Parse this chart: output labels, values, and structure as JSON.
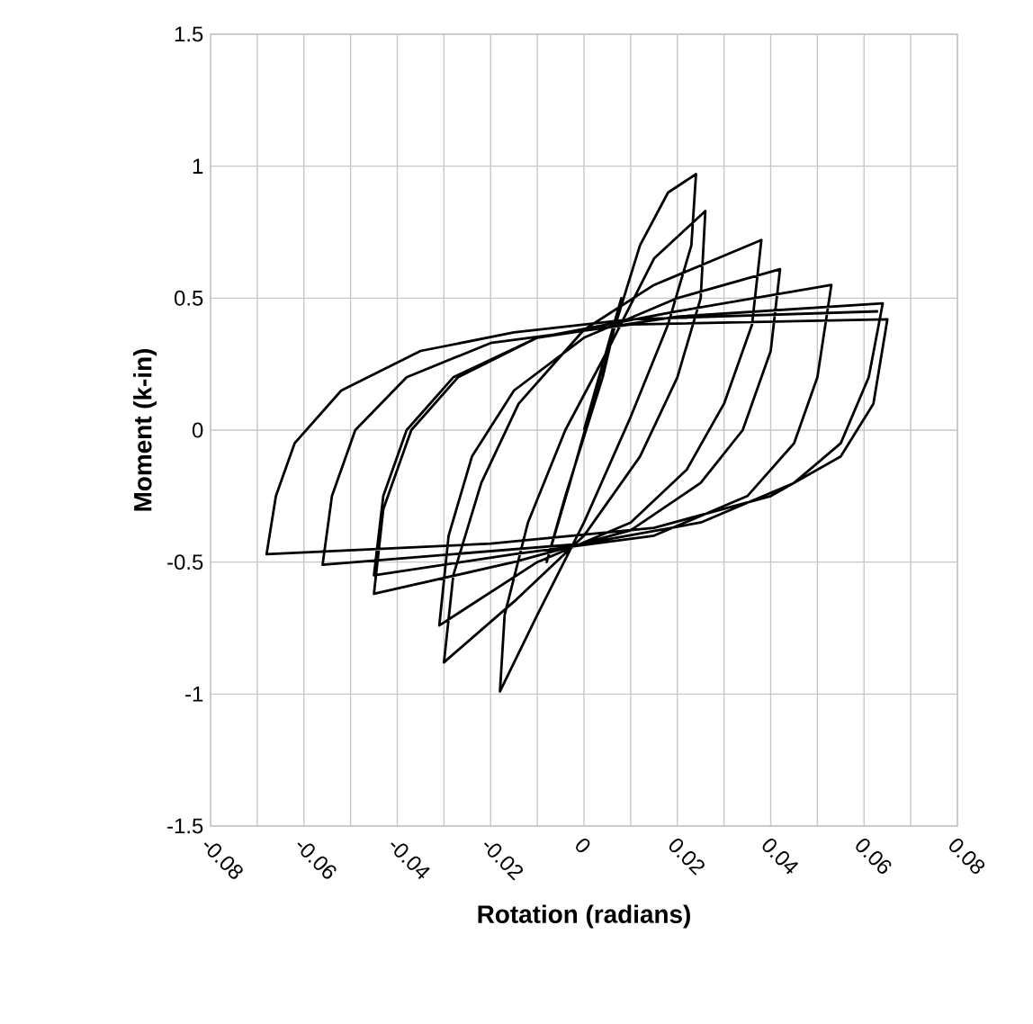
{
  "chart_data": {
    "type": "line",
    "xlabel": "Rotation (radians)",
    "ylabel": "Moment (k-in)",
    "xlim": [
      -0.08,
      0.08
    ],
    "ylim": [
      -1.5,
      1.5
    ],
    "xticks": [
      {
        "value": -0.08,
        "label": "-0.08"
      },
      {
        "value": -0.07,
        "label": null
      },
      {
        "value": -0.06,
        "label": "-0.06"
      },
      {
        "value": -0.05,
        "label": null
      },
      {
        "value": -0.04,
        "label": "-0.04"
      },
      {
        "value": -0.03,
        "label": null
      },
      {
        "value": -0.02,
        "label": "-0.02"
      },
      {
        "value": -0.01,
        "label": null
      },
      {
        "value": 0,
        "label": "0"
      },
      {
        "value": 0.01,
        "label": null
      },
      {
        "value": 0.02,
        "label": "0.02"
      },
      {
        "value": 0.03,
        "label": null
      },
      {
        "value": 0.04,
        "label": "0.04"
      },
      {
        "value": 0.05,
        "label": null
      },
      {
        "value": 0.06,
        "label": "0.06"
      },
      {
        "value": 0.07,
        "label": null
      },
      {
        "value": 0.08,
        "label": "0.08"
      }
    ],
    "yticks": [
      -1.5,
      -1,
      -0.5,
      0,
      0.5,
      1,
      1.5
    ],
    "grid": true,
    "marker": "none",
    "line_style": "solid",
    "series": [
      {
        "color": "#000000",
        "x": [
          0,
          0.004,
          0.008,
          0.004,
          -0.004,
          -0.008,
          -0.003,
          0.005,
          0.012,
          0.018,
          0.024,
          0.023,
          0.018,
          0.01,
          0,
          -0.01,
          -0.018,
          -0.017,
          -0.012,
          -0.004,
          0.005,
          0.015,
          0.026,
          0.025,
          0.02,
          0.012,
          0,
          -0.015,
          -0.03,
          -0.028,
          -0.022,
          -0.014,
          0,
          0.015,
          0.038,
          0.036,
          0.03,
          0.022,
          0.01,
          -0.01,
          -0.031,
          -0.029,
          -0.024,
          -0.015,
          0,
          0.02,
          0.042,
          0.04,
          0.034,
          0.025,
          0.01,
          -0.015,
          -0.045,
          -0.043,
          -0.037,
          -0.027,
          -0.01,
          0.02,
          0.053,
          0.05,
          0.045,
          0.035,
          0.015,
          -0.015,
          -0.045,
          -0.043,
          -0.038,
          -0.028,
          -0.01,
          0.02,
          0.064,
          0.061,
          0.055,
          0.045,
          0.025,
          0,
          -0.056,
          -0.054,
          -0.049,
          -0.038,
          -0.02,
          0.01,
          0.065,
          0.062,
          0.055,
          0.04,
          0.015,
          -0.02,
          -0.068,
          -0.066,
          -0.062,
          -0.052,
          -0.035,
          -0.015,
          0.01,
          0.063
        ],
        "values": [
          0,
          0.25,
          0.5,
          0.2,
          -0.25,
          -0.5,
          -0.2,
          0.3,
          0.7,
          0.9,
          0.97,
          0.7,
          0.4,
          0.05,
          -0.35,
          -0.7,
          -0.99,
          -0.7,
          -0.35,
          0,
          0.3,
          0.65,
          0.83,
          0.5,
          0.2,
          -0.1,
          -0.4,
          -0.65,
          -0.88,
          -0.55,
          -0.2,
          0.1,
          0.38,
          0.55,
          0.72,
          0.4,
          0.1,
          -0.15,
          -0.35,
          -0.5,
          -0.74,
          -0.4,
          -0.1,
          0.15,
          0.35,
          0.5,
          0.61,
          0.3,
          0,
          -0.2,
          -0.38,
          -0.5,
          -0.62,
          -0.3,
          0,
          0.2,
          0.35,
          0.45,
          0.55,
          0.2,
          -0.05,
          -0.25,
          -0.4,
          -0.47,
          -0.55,
          -0.25,
          0,
          0.2,
          0.35,
          0.43,
          0.48,
          0.2,
          -0.05,
          -0.2,
          -0.35,
          -0.43,
          -0.51,
          -0.25,
          0,
          0.2,
          0.33,
          0.4,
          0.42,
          0.1,
          -0.1,
          -0.25,
          -0.37,
          -0.43,
          -0.47,
          -0.25,
          -0.05,
          0.15,
          0.3,
          0.37,
          0.42,
          0.45
        ]
      }
    ]
  }
}
